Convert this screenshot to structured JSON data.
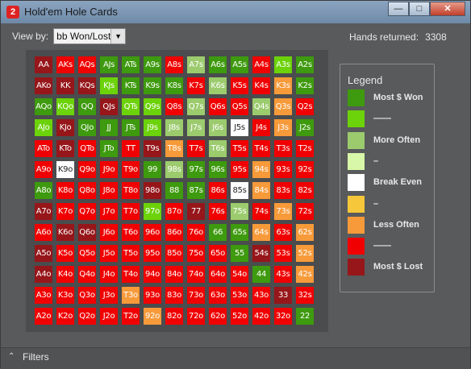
{
  "window": {
    "title": "Hold'em Hole Cards",
    "icon_glyph": "2",
    "min": "—",
    "max": "□",
    "close": "✕"
  },
  "toolbar": {
    "view_label": "View by:",
    "view_value": "bb Won/Lost",
    "hands_label": "Hands returned:",
    "hands_value": "3308"
  },
  "colors": {
    "G": "#3e9a0e",
    "L": "#6cd20a",
    "M": "#9ccb6e",
    "P": "#d8f7a8",
    "W": "#ffffff",
    "Y": "#f6c73a",
    "O": "#f79a3a",
    "R": "#f00000",
    "D": "#96161a"
  },
  "grid": [
    [
      [
        "AA",
        "D"
      ],
      [
        "AKs",
        "R"
      ],
      [
        "AQs",
        "R"
      ],
      [
        "AJs",
        "G"
      ],
      [
        "ATs",
        "G"
      ],
      [
        "A9s",
        "G"
      ],
      [
        "A8s",
        "R"
      ],
      [
        "A7s",
        "M"
      ],
      [
        "A6s",
        "G"
      ],
      [
        "A5s",
        "G"
      ],
      [
        "A4s",
        "R"
      ],
      [
        "A3s",
        "L"
      ],
      [
        "A2s",
        "G"
      ]
    ],
    [
      [
        "AKo",
        "D"
      ],
      [
        "KK",
        "D"
      ],
      [
        "KQs",
        "D"
      ],
      [
        "KJs",
        "L"
      ],
      [
        "KTs",
        "G"
      ],
      [
        "K9s",
        "G"
      ],
      [
        "K8s",
        "G"
      ],
      [
        "K7s",
        "R"
      ],
      [
        "K6s",
        "M"
      ],
      [
        "K5s",
        "R"
      ],
      [
        "K4s",
        "R"
      ],
      [
        "K3s",
        "O"
      ],
      [
        "K2s",
        "G"
      ]
    ],
    [
      [
        "AQo",
        "G"
      ],
      [
        "KQo",
        "L"
      ],
      [
        "QQ",
        "G"
      ],
      [
        "QJs",
        "D"
      ],
      [
        "QTs",
        "L"
      ],
      [
        "Q9s",
        "L"
      ],
      [
        "Q8s",
        "R"
      ],
      [
        "Q7s",
        "M"
      ],
      [
        "Q6s",
        "R"
      ],
      [
        "Q5s",
        "R"
      ],
      [
        "Q4s",
        "M"
      ],
      [
        "Q3s",
        "O"
      ],
      [
        "Q2s",
        "R"
      ]
    ],
    [
      [
        "AJo",
        "L"
      ],
      [
        "KJo",
        "D"
      ],
      [
        "QJo",
        "G"
      ],
      [
        "JJ",
        "G"
      ],
      [
        "JTs",
        "G"
      ],
      [
        "J9s",
        "L"
      ],
      [
        "J8s",
        "M"
      ],
      [
        "J7s",
        "M"
      ],
      [
        "J6s",
        "M"
      ],
      [
        "J5s",
        "W"
      ],
      [
        "J4s",
        "R"
      ],
      [
        "J3s",
        "O"
      ],
      [
        "J2s",
        "G"
      ]
    ],
    [
      [
        "ATo",
        "R"
      ],
      [
        "KTo",
        "D"
      ],
      [
        "QTo",
        "R"
      ],
      [
        "JTo",
        "G"
      ],
      [
        "TT",
        "R"
      ],
      [
        "T9s",
        "D"
      ],
      [
        "T8s",
        "O"
      ],
      [
        "T7s",
        "R"
      ],
      [
        "T6s",
        "M"
      ],
      [
        "T5s",
        "R"
      ],
      [
        "T4s",
        "R"
      ],
      [
        "T3s",
        "R"
      ],
      [
        "T2s",
        "R"
      ]
    ],
    [
      [
        "A9o",
        "R"
      ],
      [
        "K9o",
        "W"
      ],
      [
        "Q9o",
        "R"
      ],
      [
        "J9o",
        "R"
      ],
      [
        "T9o",
        "R"
      ],
      [
        "99",
        "G"
      ],
      [
        "98s",
        "M"
      ],
      [
        "97s",
        "G"
      ],
      [
        "96s",
        "G"
      ],
      [
        "95s",
        "R"
      ],
      [
        "94s",
        "O"
      ],
      [
        "93s",
        "R"
      ],
      [
        "92s",
        "R"
      ]
    ],
    [
      [
        "A8o",
        "G"
      ],
      [
        "K8o",
        "R"
      ],
      [
        "Q8o",
        "R"
      ],
      [
        "J8o",
        "R"
      ],
      [
        "T8o",
        "R"
      ],
      [
        "98o",
        "D"
      ],
      [
        "88",
        "G"
      ],
      [
        "87s",
        "G"
      ],
      [
        "86s",
        "R"
      ],
      [
        "85s",
        "W"
      ],
      [
        "84s",
        "O"
      ],
      [
        "83s",
        "R"
      ],
      [
        "82s",
        "R"
      ]
    ],
    [
      [
        "A7o",
        "D"
      ],
      [
        "K7o",
        "R"
      ],
      [
        "Q7o",
        "R"
      ],
      [
        "J7o",
        "R"
      ],
      [
        "T7o",
        "R"
      ],
      [
        "97o",
        "L"
      ],
      [
        "87o",
        "R"
      ],
      [
        "77",
        "D"
      ],
      [
        "76s",
        "R"
      ],
      [
        "75s",
        "M"
      ],
      [
        "74s",
        "R"
      ],
      [
        "73s",
        "O"
      ],
      [
        "72s",
        "R"
      ]
    ],
    [
      [
        "A6o",
        "R"
      ],
      [
        "K6o",
        "D"
      ],
      [
        "Q6o",
        "D"
      ],
      [
        "J6o",
        "R"
      ],
      [
        "T6o",
        "R"
      ],
      [
        "96o",
        "R"
      ],
      [
        "86o",
        "R"
      ],
      [
        "76o",
        "R"
      ],
      [
        "66",
        "G"
      ],
      [
        "65s",
        "G"
      ],
      [
        "64s",
        "O"
      ],
      [
        "63s",
        "R"
      ],
      [
        "62s",
        "O"
      ]
    ],
    [
      [
        "A5o",
        "D"
      ],
      [
        "K5o",
        "R"
      ],
      [
        "Q5o",
        "R"
      ],
      [
        "J5o",
        "R"
      ],
      [
        "T5o",
        "R"
      ],
      [
        "95o",
        "R"
      ],
      [
        "85o",
        "R"
      ],
      [
        "75o",
        "R"
      ],
      [
        "65o",
        "R"
      ],
      [
        "55",
        "G"
      ],
      [
        "54s",
        "D"
      ],
      [
        "53s",
        "R"
      ],
      [
        "52s",
        "O"
      ]
    ],
    [
      [
        "A4o",
        "D"
      ],
      [
        "K4o",
        "R"
      ],
      [
        "Q4o",
        "R"
      ],
      [
        "J4o",
        "R"
      ],
      [
        "T4o",
        "R"
      ],
      [
        "94o",
        "R"
      ],
      [
        "84o",
        "R"
      ],
      [
        "74o",
        "R"
      ],
      [
        "64o",
        "R"
      ],
      [
        "54o",
        "R"
      ],
      [
        "44",
        "G"
      ],
      [
        "43s",
        "R"
      ],
      [
        "42s",
        "O"
      ]
    ],
    [
      [
        "A3o",
        "R"
      ],
      [
        "K3o",
        "R"
      ],
      [
        "Q3o",
        "R"
      ],
      [
        "J3o",
        "R"
      ],
      [
        "T3o",
        "O"
      ],
      [
        "93o",
        "R"
      ],
      [
        "83o",
        "R"
      ],
      [
        "73o",
        "R"
      ],
      [
        "63o",
        "R"
      ],
      [
        "53o",
        "R"
      ],
      [
        "43o",
        "R"
      ],
      [
        "33",
        "D"
      ],
      [
        "32s",
        "R"
      ]
    ],
    [
      [
        "A2o",
        "R"
      ],
      [
        "K2o",
        "R"
      ],
      [
        "Q2o",
        "R"
      ],
      [
        "J2o",
        "R"
      ],
      [
        "T2o",
        "R"
      ],
      [
        "92o",
        "O"
      ],
      [
        "82o",
        "R"
      ],
      [
        "72o",
        "R"
      ],
      [
        "62o",
        "R"
      ],
      [
        "52o",
        "R"
      ],
      [
        "42o",
        "R"
      ],
      [
        "32o",
        "R"
      ],
      [
        "22",
        "G"
      ]
    ]
  ],
  "legend": {
    "title": "Legend",
    "items": [
      {
        "color": "G",
        "label": "Most $ Won"
      },
      {
        "color": "L",
        "label": "——"
      },
      {
        "color": "M",
        "label": "More Often"
      },
      {
        "color": "P",
        "label": "–"
      },
      {
        "color": "W",
        "label": "Break Even"
      },
      {
        "color": "Y",
        "label": "–"
      },
      {
        "color": "O",
        "label": "Less Often"
      },
      {
        "color": "R",
        "label": "——"
      },
      {
        "color": "D",
        "label": "Most $ Lost"
      }
    ]
  },
  "footer": {
    "label": "Filters"
  }
}
